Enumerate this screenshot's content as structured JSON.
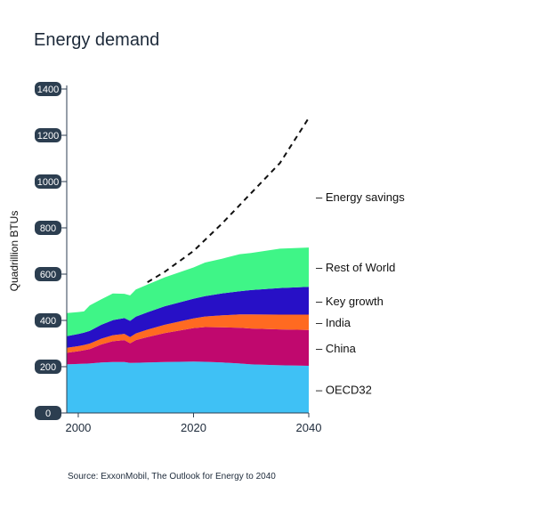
{
  "title": "Energy demand",
  "source": "Source: ExxonMobil, The Outlook for Energy to 2040",
  "chart_data": {
    "type": "area",
    "stacked": true,
    "title": "Energy demand",
    "ylabel": "Quadrillion BTUs",
    "xlabel": "",
    "xlim": [
      1998,
      2040
    ],
    "ylim": [
      0,
      1400
    ],
    "x_ticks": [
      2000,
      2020,
      2040
    ],
    "y_ticks": [
      0,
      200,
      400,
      600,
      800,
      1000,
      1200,
      1400
    ],
    "x": [
      1998,
      2000,
      2001,
      2002,
      2004,
      2006,
      2008,
      2009,
      2010,
      2012,
      2015,
      2020,
      2022,
      2025,
      2028,
      2030,
      2035,
      2040
    ],
    "series": [
      {
        "name": "OECD32",
        "color": "#3fc1f5",
        "values": [
          210,
          212,
          213,
          214,
          218,
          220,
          220,
          216,
          217,
          218,
          220,
          222,
          221,
          218,
          214,
          210,
          206,
          204
        ]
      },
      {
        "name": "China",
        "color": "#c0086e",
        "values": [
          50,
          55,
          58,
          62,
          78,
          90,
          95,
          85,
          98,
          110,
          125,
          145,
          150,
          152,
          154,
          155,
          155,
          155
        ]
      },
      {
        "name": "India",
        "color": "#ff6a21",
        "values": [
          22,
          22,
          23,
          24,
          25,
          26,
          27,
          27,
          29,
          32,
          36,
          42,
          46,
          52,
          58,
          61,
          64,
          66
        ]
      },
      {
        "name": "Key growth",
        "color": "#2710c6",
        "values": [
          50,
          52,
          53,
          55,
          60,
          65,
          68,
          70,
          72,
          75,
          80,
          85,
          88,
          95,
          100,
          105,
          115,
          120
        ]
      },
      {
        "name": "Rest of World",
        "color": "#3ff587",
        "values": [
          100,
          95,
          92,
          110,
          110,
          115,
          105,
          110,
          118,
          120,
          125,
          135,
          145,
          150,
          160,
          160,
          170,
          170
        ]
      }
    ],
    "overlay_line": {
      "name": "Energy savings",
      "style": "dashed",
      "color": "#111111",
      "x": [
        2012,
        2015,
        2020,
        2025,
        2030,
        2035,
        2040
      ],
      "values": [
        565,
        610,
        700,
        820,
        950,
        1080,
        1275
      ]
    },
    "legend_placement": "right",
    "grid": false
  }
}
